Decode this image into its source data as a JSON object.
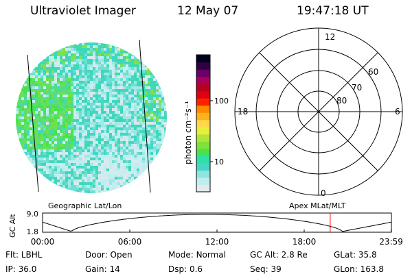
{
  "header": {
    "instrument": "Ultraviolet Imager",
    "date": "12 May 07",
    "time": "19:47:18 UT"
  },
  "colorbar": {
    "unit_label": "photon cm⁻²s⁻¹",
    "tick_100": "100",
    "tick_10": "10",
    "colors": [
      "#e4eaec",
      "#bfeef0",
      "#8ee4e0",
      "#46d6c4",
      "#2fe0a6",
      "#48e24e",
      "#7fe23a",
      "#b2e43a",
      "#e8ee3c",
      "#ffd94a",
      "#ffb21a",
      "#ff8a00",
      "#ff2000",
      "#e00010",
      "#b80020",
      "#a8005a",
      "#6a006a",
      "#300040",
      "#000020"
    ]
  },
  "polar": {
    "label_top": "12",
    "label_bottom": "0",
    "label_left": "18",
    "label_right": "6",
    "lat_80": "80",
    "lat_70": "70",
    "lat_60": "60"
  },
  "projection": {
    "left_label": "Geographic Lat/Lon",
    "right_label": "Apex MLat/MLT"
  },
  "altplot": {
    "ylabel": "GC Alt",
    "ytick_max": "9.0",
    "ytick_min": "1.8",
    "xticks": [
      "00:00",
      "06:00",
      "12:00",
      "18:00",
      "23:59"
    ],
    "marker_hour": 19.79,
    "marker_color": "#ff0000"
  },
  "info": {
    "row1": [
      {
        "label": "Flt:",
        "value": "LBHL"
      },
      {
        "label": "Door:",
        "value": "Open"
      },
      {
        "label": "Mode:",
        "value": "Normal"
      },
      {
        "label": "GC Alt:",
        "value": "2.8 Re"
      },
      {
        "label": "GLat:",
        "value": "35.8"
      }
    ],
    "row2": [
      {
        "label": "IP:",
        "value": "36.0"
      },
      {
        "label": "Gain:",
        "value": "14"
      },
      {
        "label": "Dsp:",
        "value": "0.6"
      },
      {
        "label": "Seq:",
        "value": "39"
      },
      {
        "label": "GLon:",
        "value": "163.8"
      }
    ]
  }
}
